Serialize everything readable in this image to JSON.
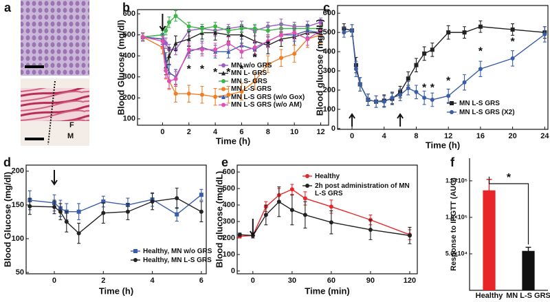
{
  "panel_a": {
    "label": "a",
    "tissue_labels": [
      "F",
      "M"
    ]
  },
  "chart_data": [
    {
      "type": "line",
      "panel_label": "b",
      "xlabel": "Time (h)",
      "ylabel": "Blood Glucose (mg/dl)",
      "xlim": [
        -1.9,
        12.6
      ],
      "ylim": [
        70,
        620
      ],
      "xticks": [
        0,
        2,
        4,
        6,
        8,
        10,
        12
      ],
      "yticks": [
        100,
        200,
        300,
        400,
        500,
        600
      ],
      "frame": true,
      "legend": "lower right",
      "x": [
        -1.5,
        0,
        0.25,
        0.5,
        1,
        2,
        3,
        4,
        5,
        6,
        7,
        8,
        9,
        10,
        11,
        12
      ],
      "series": [
        {
          "name": "MN w/o GRS",
          "color": "#9b5cc4",
          "marker": "circle",
          "values": [
            490,
            500,
            460,
            430,
            430,
            520,
            530,
            520,
            530,
            540,
            520,
            540,
            550,
            540,
            540,
            560
          ],
          "errors": [
            20,
            20,
            25,
            25,
            25,
            25,
            20,
            25,
            20,
            25,
            25,
            20,
            25,
            20,
            25,
            20
          ]
        },
        {
          "name": "MN L- GRS",
          "color": "#222222",
          "marker": "triangle",
          "values": [
            490,
            480,
            350,
            400,
            460,
            480,
            510,
            510,
            500,
            500,
            470,
            450,
            480,
            490,
            510,
            510
          ],
          "errors": [
            20,
            25,
            40,
            40,
            35,
            35,
            30,
            35,
            30,
            40,
            40,
            40,
            35,
            40,
            35,
            40
          ]
        },
        {
          "name": "MN S- GRS",
          "color": "#3cb54a",
          "marker": "circle",
          "values": [
            490,
            500,
            520,
            560,
            590,
            540,
            530,
            540,
            520,
            530,
            530,
            520,
            530,
            530,
            530,
            530
          ],
          "errors": [
            15,
            20,
            20,
            25,
            25,
            20,
            20,
            20,
            20,
            20,
            20,
            20,
            20,
            20,
            20,
            20
          ]
        },
        {
          "name": "MN L-S GRS",
          "color": "#f07e26",
          "marker": "circle",
          "values": [
            490,
            440,
            330,
            280,
            220,
            220,
            215,
            205,
            215,
            230,
            280,
            360,
            390,
            410,
            480,
            500
          ],
          "errors": [
            20,
            30,
            40,
            40,
            40,
            40,
            40,
            40,
            40,
            40,
            40,
            40,
            40,
            40,
            40,
            40
          ]
        },
        {
          "name": "MN L-S GRS (w/o Gox)",
          "color": "#3a5da8",
          "marker": "triangle",
          "values": [
            490,
            480,
            380,
            320,
            300,
            420,
            440,
            420,
            420,
            450,
            430,
            470,
            500,
            500,
            520,
            510
          ],
          "errors": [
            20,
            25,
            35,
            35,
            35,
            30,
            30,
            30,
            30,
            30,
            30,
            30,
            30,
            30,
            30,
            30
          ]
        },
        {
          "name": "MN L-S GRS (w/o AM)",
          "color": "#e04fb4",
          "marker": "circle",
          "values": [
            490,
            470,
            330,
            280,
            290,
            430,
            430,
            430,
            460,
            420,
            440,
            470,
            500,
            510,
            480,
            520
          ],
          "errors": [
            20,
            25,
            35,
            35,
            35,
            30,
            30,
            30,
            30,
            30,
            30,
            30,
            30,
            30,
            30,
            30
          ]
        }
      ],
      "annotations": [
        {
          "text": "*",
          "x": 2,
          "y": 335
        },
        {
          "text": "*",
          "x": 3,
          "y": 335
        },
        {
          "text": "*",
          "x": 4,
          "y": 320
        },
        {
          "text": "*",
          "x": 5,
          "y": 320
        },
        {
          "text": "*",
          "x": 6,
          "y": 335
        },
        {
          "text": "*",
          "x": 7,
          "y": 390
        },
        {
          "text": "*",
          "x": 8,
          "y": 450
        }
      ],
      "arrows": [
        {
          "x": 0,
          "dir": "down"
        }
      ]
    },
    {
      "type": "line",
      "panel_label": "c",
      "xlabel": "Time (h)",
      "ylabel": "Blood glucose (mg/dL)",
      "xlim": [
        -1.8,
        24.4
      ],
      "ylim": [
        -4,
        640
      ],
      "xticks": [
        0,
        4,
        8,
        12,
        16,
        20,
        24
      ],
      "yticks": [
        0,
        100,
        200,
        300,
        400,
        500,
        600
      ],
      "frame": true,
      "legend": "lower right",
      "x": [
        -1,
        0,
        0.5,
        1,
        2,
        3,
        4,
        5,
        6,
        7,
        8,
        9,
        10,
        12,
        14,
        16,
        20,
        24
      ],
      "series": [
        {
          "name": "MN L-S GRS",
          "color": "#222222",
          "marker": "square",
          "values": [
            520,
            510,
            330,
            230,
            150,
            140,
            145,
            155,
            190,
            260,
            330,
            390,
            410,
            500,
            500,
            530,
            515,
            500
          ],
          "errors": [
            25,
            30,
            40,
            35,
            30,
            30,
            30,
            30,
            30,
            35,
            35,
            35,
            35,
            35,
            30,
            30,
            30,
            30
          ]
        },
        {
          "name": "MN L-S GRS (X2)",
          "color": "#3a5da8",
          "marker": "circle",
          "values": [
            500,
            510,
            310,
            230,
            150,
            140,
            140,
            160,
            175,
            210,
            190,
            160,
            150,
            170,
            240,
            310,
            365,
            490
          ],
          "errors": [
            25,
            30,
            40,
            35,
            30,
            30,
            30,
            30,
            30,
            35,
            35,
            35,
            35,
            35,
            40,
            40,
            40,
            40
          ]
        }
      ],
      "annotations": [
        {
          "text": "*",
          "x": 9,
          "y": 210
        },
        {
          "text": "*",
          "x": 10,
          "y": 210
        },
        {
          "text": "*",
          "x": 12,
          "y": 245
        },
        {
          "text": "*",
          "x": 16,
          "y": 400
        },
        {
          "text": "*",
          "x": 20,
          "y": 450
        }
      ],
      "arrows": [
        {
          "x": 0,
          "dir": "up"
        },
        {
          "x": 6,
          "dir": "up"
        }
      ]
    },
    {
      "type": "line",
      "panel_label": "d",
      "xlabel": "Time (h)",
      "ylabel": "Blood Glucose (mg/dl)",
      "xlim": [
        -1.15,
        6.2
      ],
      "ylim": [
        48,
        209
      ],
      "xticks": [
        0,
        2,
        4,
        6
      ],
      "yticks": [
        50,
        100,
        150,
        200
      ],
      "frame": true,
      "legend": "lower right",
      "x": [
        -1,
        0,
        0.25,
        0.5,
        1,
        2,
        3,
        4,
        5,
        6
      ],
      "series": [
        {
          "name": "Healthy, MN w/o GRS",
          "color": "#3a5da8",
          "marker": "square",
          "values": [
            157,
            153,
            145,
            140,
            140,
            155,
            150,
            158,
            136,
            165
          ],
          "errors": [
            14,
            12,
            12,
            12,
            12,
            8,
            10,
            10,
            10,
            8
          ]
        },
        {
          "name": "Healthy, MN L-S GRS",
          "color": "#222222",
          "marker": "circle",
          "values": [
            148,
            147,
            140,
            125,
            108,
            138,
            140,
            155,
            160,
            140
          ],
          "errors": [
            12,
            10,
            12,
            15,
            15,
            15,
            12,
            12,
            15,
            15
          ]
        }
      ],
      "arrows": [
        {
          "x": 0,
          "dir": "down"
        }
      ]
    },
    {
      "type": "line",
      "panel_label": "e",
      "xlabel": "Time (min)",
      "ylabel": "Blood glucose (mg/dL)",
      "xlim": [
        -12,
        125.8
      ],
      "ylim": [
        -17,
        642
      ],
      "xticks": [
        0,
        30,
        60,
        90,
        120
      ],
      "yticks": [
        0,
        100,
        200,
        300,
        400,
        500,
        600
      ],
      "frame": true,
      "legend": "upper right",
      "x": [
        -10,
        0,
        10,
        20,
        30,
        40,
        60,
        90,
        120
      ],
      "series": [
        {
          "name": "Healthy",
          "color": "#e8262a",
          "marker": "circle",
          "values": [
            210,
            215,
            390,
            460,
            495,
            440,
            390,
            310,
            220
          ],
          "errors": [
            10,
            15,
            30,
            40,
            30,
            40,
            40,
            30,
            30
          ]
        },
        {
          "name": "2h post administration of MN L-S GRS",
          "color": "#222222",
          "marker": "circle",
          "values": [
            220,
            215,
            340,
            420,
            370,
            340,
            295,
            250,
            215
          ],
          "errors": [
            10,
            15,
            60,
            90,
            90,
            80,
            70,
            60,
            50
          ]
        }
      ],
      "arrows": [
        {
          "x": 0,
          "dir": "down"
        }
      ]
    },
    {
      "type": "bar",
      "panel_label": "f",
      "ylabel": "Response to IPGTT (AUC)",
      "categories": [
        "Healthy",
        "MN L-S GRS"
      ],
      "values": [
        137000,
        54000
      ],
      "errors": [
        15000,
        5000
      ],
      "colors": [
        "#e8262a",
        "#111111"
      ],
      "ylim": [
        0,
        181000
      ],
      "yticks": [
        {
          "value": 50000,
          "label": "5.0×10⁴"
        },
        {
          "value": 100000,
          "label": "1.0×10⁵"
        },
        {
          "value": 150000,
          "label": "1.5×10⁵"
        }
      ],
      "frame": false,
      "annotations": [
        {
          "text": "*"
        }
      ]
    }
  ]
}
